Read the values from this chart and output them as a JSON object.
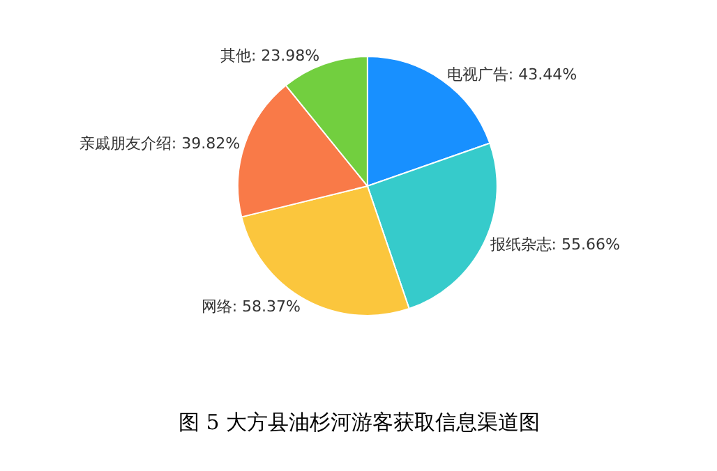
{
  "chart_data": {
    "type": "pie",
    "title": "图 5 大方县油杉河游客获取信息渠道图",
    "categories": [
      "电视广告",
      "报纸杂志",
      "网络",
      "亲戚朋友介绍",
      "其他"
    ],
    "values": [
      43.44,
      55.66,
      58.37,
      39.82,
      23.98
    ],
    "value_labels": [
      "43.44%",
      "55.66%",
      "58.37%",
      "39.82%",
      "23.98%"
    ],
    "colors": [
      "#1890ff",
      "#36cbcb",
      "#fbc63d",
      "#f97a48",
      "#72cf3f"
    ]
  }
}
